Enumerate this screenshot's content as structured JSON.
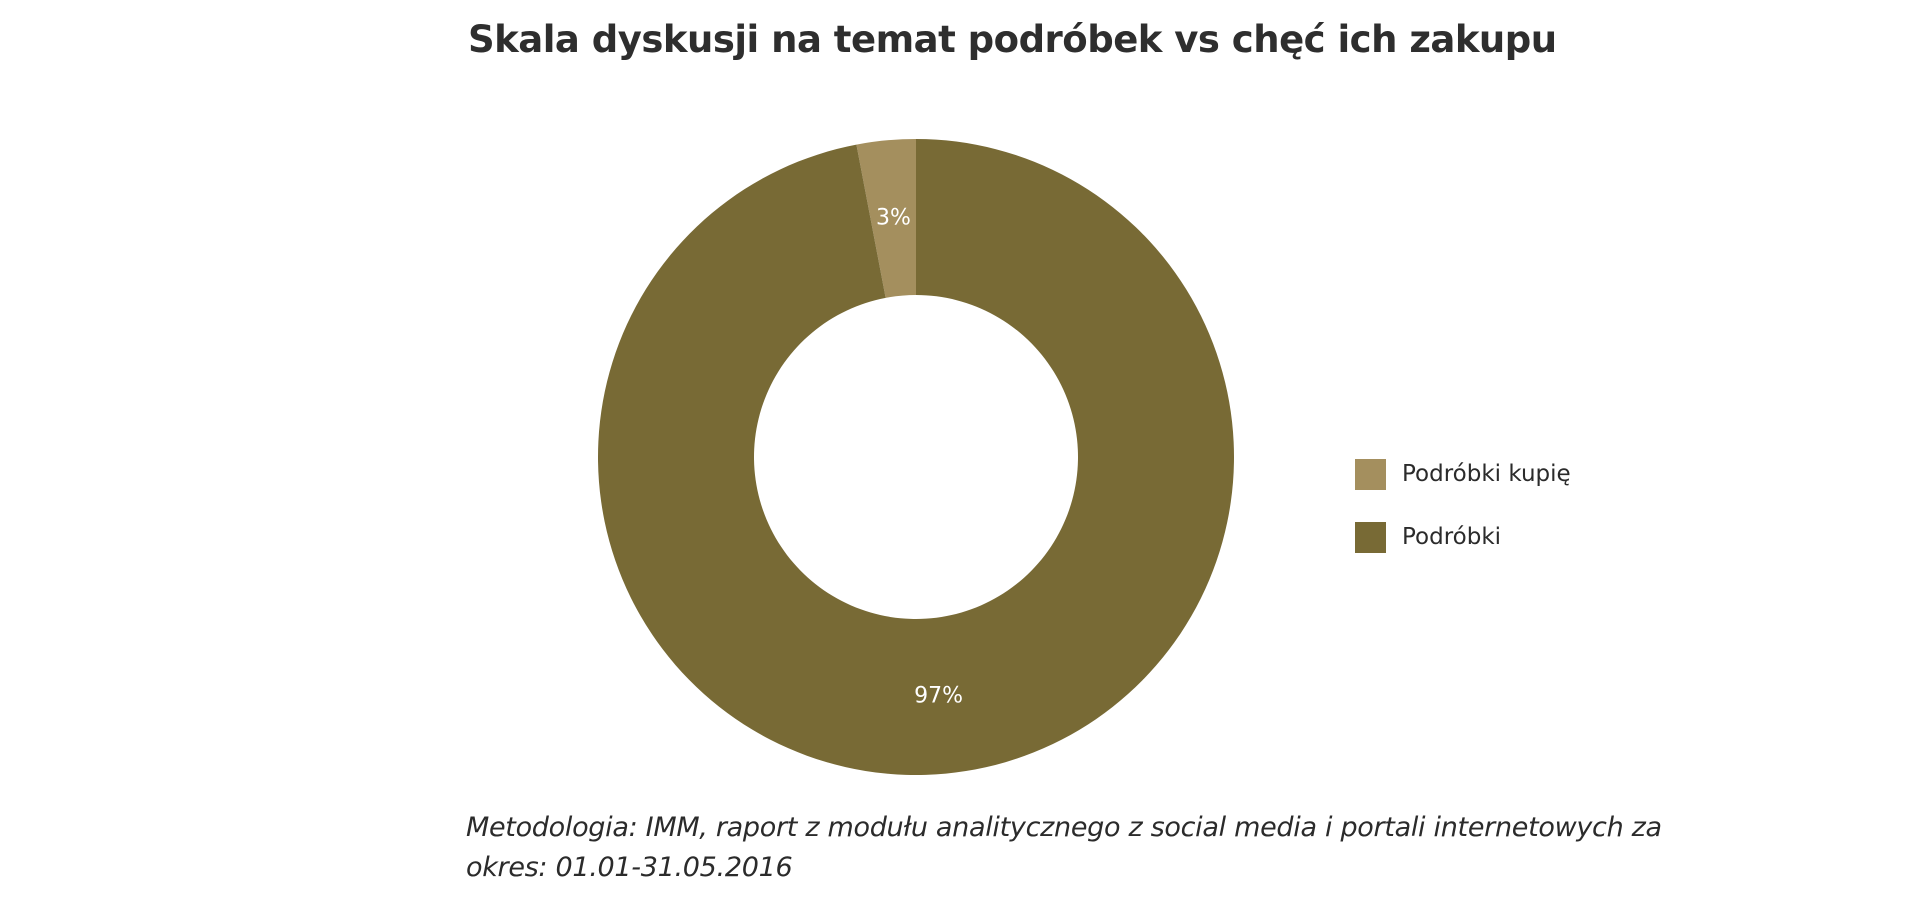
{
  "chart_data": {
    "type": "pie",
    "title": "Skala dyskusji na temat podróbek vs chęć ich zakupu",
    "variant": "donut",
    "legend_position": "right",
    "slices": [
      {
        "name": "Podróbki kupię",
        "value": 3,
        "label": "3%",
        "color": "#a48f5e"
      },
      {
        "name": "Podróbki",
        "value": 97,
        "label": "97%",
        "color": "#786a35"
      }
    ]
  },
  "footnote": {
    "text": "Metodologia: IMM, raport z modułu analitycznego z social media i portali internetowych za okres: 01.01-31.05.2016"
  }
}
